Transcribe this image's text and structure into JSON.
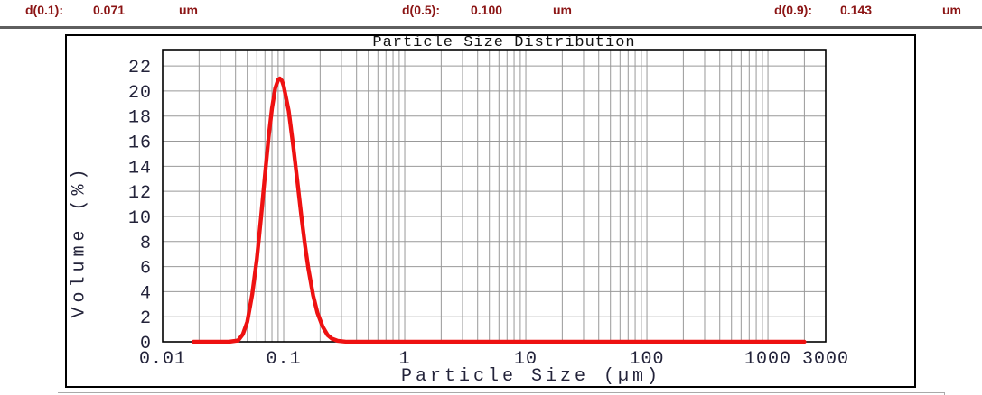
{
  "header": {
    "items": [
      {
        "label": "d(0.1):",
        "value": "0.071",
        "unit": "um"
      },
      {
        "label": "d(0.5):",
        "value": "0.100",
        "unit": "um"
      },
      {
        "label": "d(0.9):",
        "value": "0.143",
        "unit": "um"
      }
    ],
    "text_color": "#8b1414"
  },
  "chart_data": {
    "type": "line",
    "title": "Particle Size Distribution",
    "xlabel": "Particle Size (µm)",
    "ylabel": "Volume (%)",
    "x_scale": "log",
    "xlim": [
      0.01,
      3000
    ],
    "ylim": [
      0,
      23.3
    ],
    "x_ticks": [
      0.01,
      0.1,
      1,
      10,
      100,
      1000,
      3000
    ],
    "x_tick_labels": [
      "0.01",
      "0.1",
      "1",
      "10",
      "100",
      "1000",
      "3000"
    ],
    "y_ticks": [
      0,
      2,
      4,
      6,
      8,
      10,
      12,
      14,
      16,
      18,
      20,
      22
    ],
    "grid": true,
    "grid_color": "#999999",
    "legend": "none",
    "series": [
      {
        "name": "volume-distribution",
        "color": "#ee1111",
        "peak": {
          "x": 0.093,
          "y": 21.0
        },
        "points": [
          [
            0.018,
            0
          ],
          [
            0.025,
            0
          ],
          [
            0.035,
            0
          ],
          [
            0.042,
            0.1
          ],
          [
            0.046,
            0.6
          ],
          [
            0.05,
            1.6
          ],
          [
            0.055,
            3.8
          ],
          [
            0.06,
            6.6
          ],
          [
            0.065,
            9.9
          ],
          [
            0.07,
            13.3
          ],
          [
            0.075,
            16.3
          ],
          [
            0.08,
            18.6
          ],
          [
            0.085,
            20.2
          ],
          [
            0.09,
            20.9
          ],
          [
            0.093,
            21.0
          ],
          [
            0.097,
            20.8
          ],
          [
            0.1,
            20.4
          ],
          [
            0.11,
            18.4
          ],
          [
            0.12,
            15.6
          ],
          [
            0.13,
            12.7
          ],
          [
            0.14,
            10.0
          ],
          [
            0.15,
            7.7
          ],
          [
            0.16,
            5.8
          ],
          [
            0.175,
            3.7
          ],
          [
            0.19,
            2.3
          ],
          [
            0.21,
            1.2
          ],
          [
            0.23,
            0.55
          ],
          [
            0.25,
            0.25
          ],
          [
            0.28,
            0.08
          ],
          [
            0.33,
            0
          ],
          [
            0.5,
            0
          ],
          [
            1,
            0
          ],
          [
            5,
            0
          ],
          [
            20,
            0
          ],
          [
            100,
            0
          ],
          [
            500,
            0
          ],
          [
            1200,
            0
          ],
          [
            2000,
            0
          ]
        ]
      }
    ]
  }
}
